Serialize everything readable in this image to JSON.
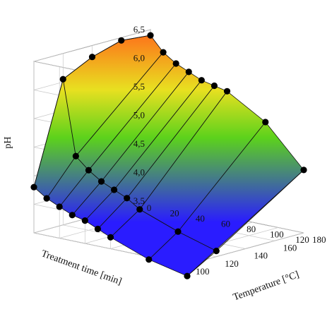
{
  "colors": {
    "background": "#ffffff",
    "grid": "#c8c8c8",
    "axis": "#444444",
    "points": "#000000",
    "surface_high": "#ff6a1a",
    "surface_mid": "#5cd21c",
    "surface_low": "#2a1cff"
  },
  "chart_data": {
    "type": "surface",
    "title": "",
    "xlabel": "Treatment time [min]",
    "ylabel": "Temperature [°C]",
    "zlabel": "pH",
    "x_ticks": [
      "0",
      "20",
      "40",
      "60",
      "80",
      "100",
      "120"
    ],
    "y_ticks": [
      "100",
      "120",
      "140",
      "160",
      "180"
    ],
    "z_ticks": [
      "3,5",
      "4,0",
      "4,5",
      "5,0",
      "5,5",
      "6,0",
      "6,5"
    ],
    "xlim": [
      0,
      120
    ],
    "ylim": [
      100,
      180
    ],
    "zlim": [
      3.5,
      6.5
    ],
    "grid": true,
    "temperature_rows": [
      {
        "temperature": 180,
        "points": [
          [
            0,
            4.3
          ],
          [
            10,
            4.15
          ],
          [
            20,
            4.05
          ],
          [
            30,
            3.95
          ],
          [
            40,
            3.9
          ],
          [
            50,
            3.8
          ],
          [
            60,
            3.7
          ],
          [
            90,
            3.45
          ],
          [
            120,
            3.3
          ]
        ]
      },
      {
        "temperature": 100,
        "points": [
          [
            0,
            6.4
          ],
          [
            120,
            4.6
          ]
        ]
      }
    ],
    "time_lines": [
      {
        "time": 0,
        "points": [
          [
            180,
            4.3
          ],
          [
            160,
            6.05
          ],
          [
            140,
            6.3
          ],
          [
            120,
            6.45
          ],
          [
            100,
            6.4
          ]
        ]
      },
      {
        "time": 10,
        "points": [
          [
            180,
            4.15
          ],
          [
            160,
            4.75
          ],
          [
            100,
            6.15
          ]
        ]
      },
      {
        "time": 20,
        "points": [
          [
            180,
            4.05
          ],
          [
            160,
            4.55
          ],
          [
            100,
            6.0
          ]
        ]
      },
      {
        "time": 30,
        "points": [
          [
            180,
            3.95
          ],
          [
            160,
            4.4
          ],
          [
            100,
            5.9
          ]
        ]
      },
      {
        "time": 40,
        "points": [
          [
            180,
            3.9
          ],
          [
            160,
            4.3
          ],
          [
            100,
            5.8
          ]
        ]
      },
      {
        "time": 50,
        "points": [
          [
            180,
            3.8
          ],
          [
            160,
            4.2
          ],
          [
            100,
            5.75
          ]
        ]
      },
      {
        "time": 60,
        "points": [
          [
            180,
            3.7
          ],
          [
            160,
            4.05
          ],
          [
            100,
            5.7
          ]
        ]
      },
      {
        "time": 90,
        "points": [
          [
            180,
            3.45
          ],
          [
            160,
            3.8
          ],
          [
            100,
            5.3
          ]
        ]
      },
      {
        "time": 120,
        "points": [
          [
            180,
            3.3
          ],
          [
            160,
            3.6
          ],
          [
            100,
            4.6
          ]
        ]
      }
    ]
  }
}
